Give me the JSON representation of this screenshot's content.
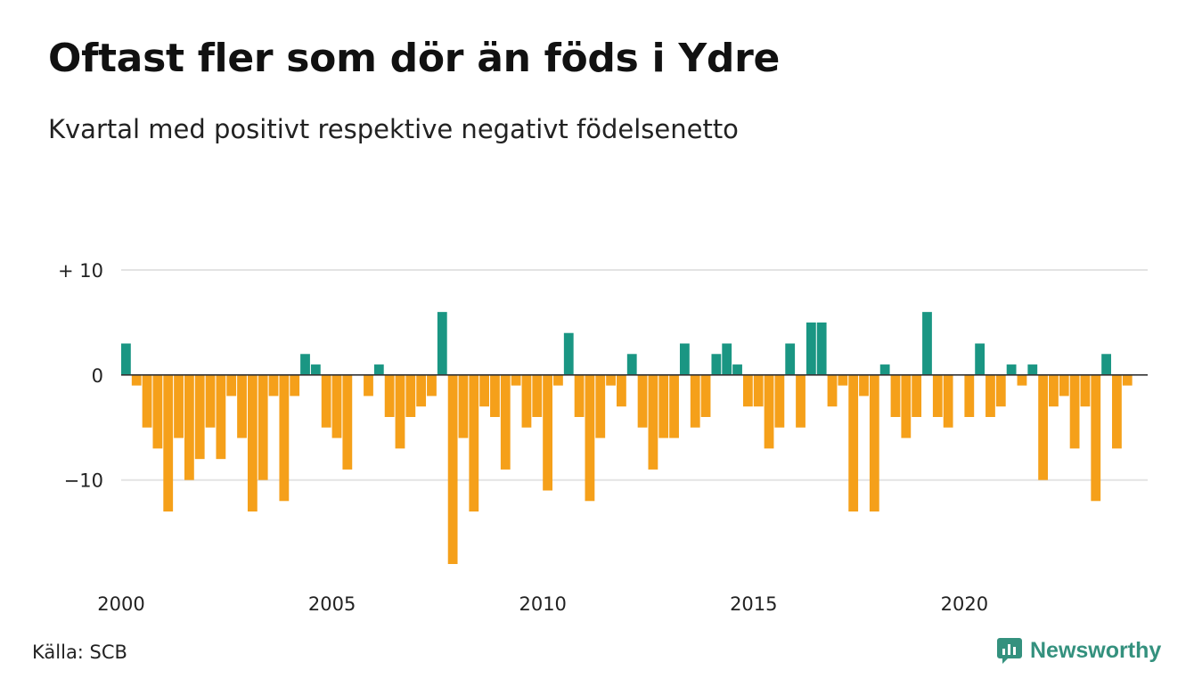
{
  "title": "Oftast fler som dör än föds i Ydre",
  "subtitle": "Kvartal med positivt respektive negativt födelsenetto",
  "source": "Källa: SCB",
  "brand": {
    "name": "Newsworthy",
    "icon": "newsworthy-logo-icon"
  },
  "colors": {
    "positive": "#1a9683",
    "negative": "#f5a01a",
    "grid": "#e3e3e3",
    "zero": "#333333"
  },
  "chart_data": {
    "type": "bar",
    "x_start": 2000,
    "x_step": 0.25,
    "xlim": [
      2000,
      2024.75
    ],
    "ylim": [
      -18,
      10
    ],
    "y_ticks": [
      {
        "value": 10,
        "label": "+ 10"
      },
      {
        "value": 0,
        "label": "0"
      },
      {
        "value": -10,
        "label": "−10"
      }
    ],
    "x_ticks": [
      {
        "value": 2000,
        "label": "2000"
      },
      {
        "value": 2005,
        "label": "2005"
      },
      {
        "value": 2010,
        "label": "2010"
      },
      {
        "value": 2015,
        "label": "2015"
      },
      {
        "value": 2020,
        "label": "2020"
      }
    ],
    "grid": true,
    "values": [
      3,
      -1,
      -5,
      -7,
      -13,
      -6,
      -10,
      -8,
      -5,
      -8,
      -2,
      -6,
      -13,
      -10,
      -2,
      -12,
      -2,
      2,
      1,
      -5,
      -6,
      -9,
      0,
      -2,
      1,
      -4,
      -7,
      -4,
      -3,
      -2,
      6,
      -18,
      -6,
      -13,
      -3,
      -4,
      -9,
      -1,
      -5,
      -4,
      -11,
      -1,
      4,
      -4,
      -12,
      -6,
      -1,
      -3,
      2,
      -5,
      -9,
      -6,
      -6,
      3,
      -5,
      -4,
      2,
      3,
      1,
      -3,
      -3,
      -7,
      -5,
      3,
      -5,
      5,
      5,
      -3,
      -1,
      -13,
      -2,
      -13,
      1,
      -4,
      -6,
      -4,
      6,
      -4,
      -5,
      0,
      -4,
      3,
      -4,
      -3,
      1,
      -1,
      1,
      -10,
      -3,
      -2,
      -7,
      -3,
      -12,
      2,
      -7,
      -1
    ]
  }
}
